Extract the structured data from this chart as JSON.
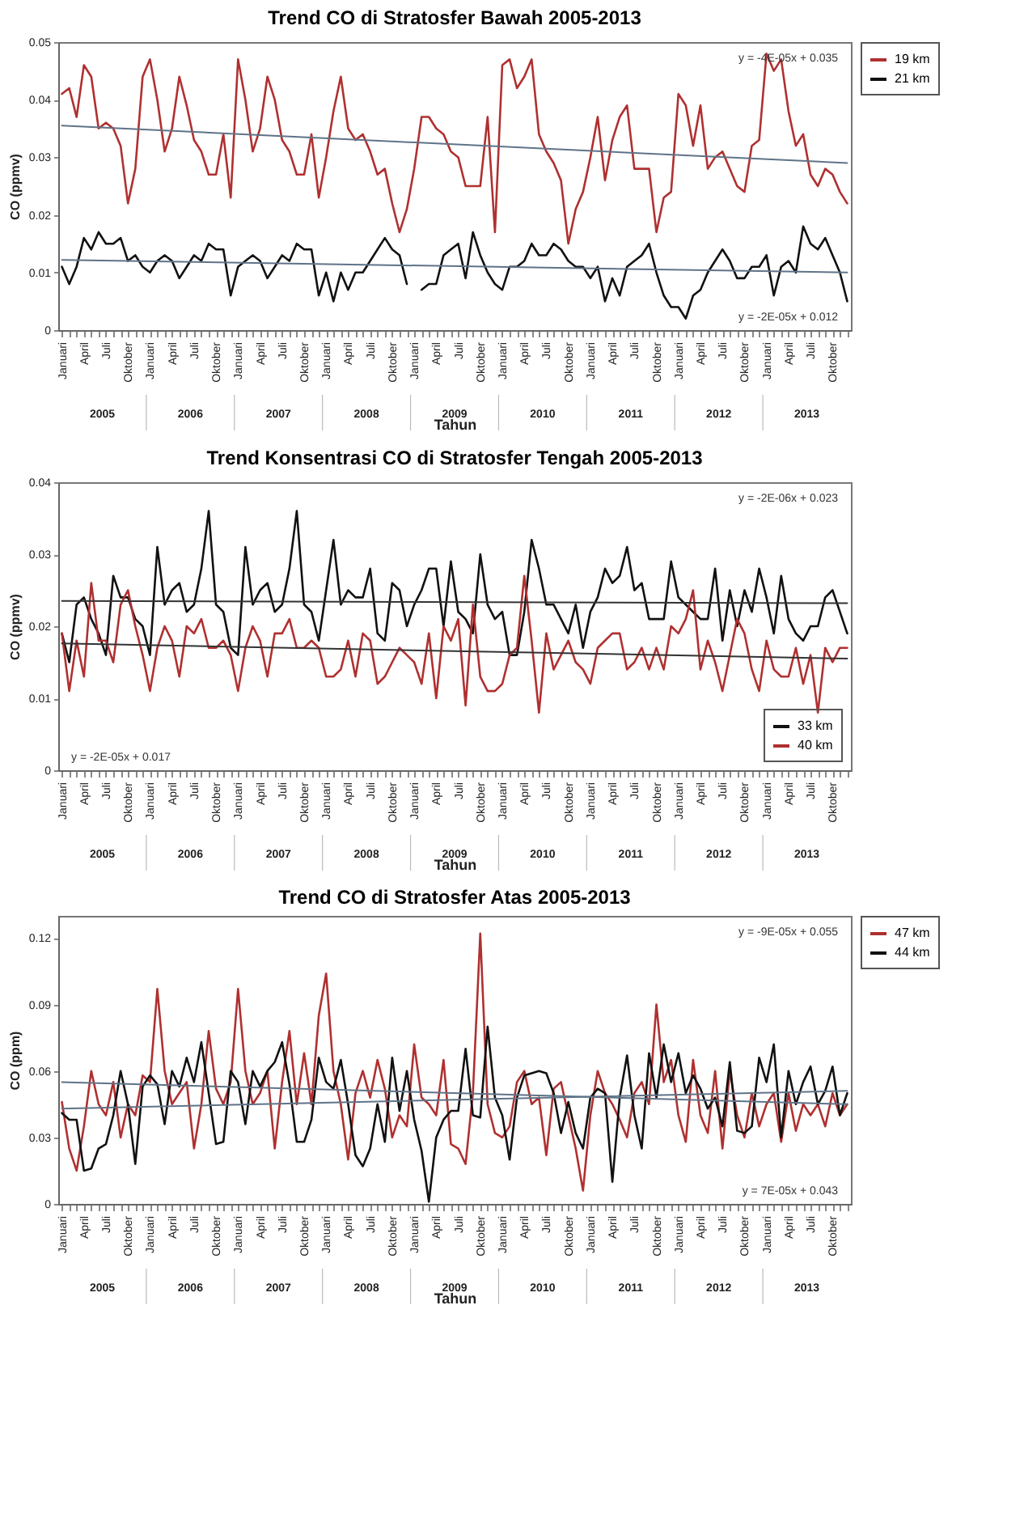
{
  "chart_data": [
    {
      "type": "line",
      "title": "Trend CO di Stratosfer Bawah 2005-2013",
      "xlabel": "Tahun",
      "ylabel": "CO (ppmv)",
      "legend": "right",
      "ylim": [
        0,
        0.05
      ],
      "yticks": [
        0,
        0.01,
        0.02,
        0.03,
        0.04,
        0.05
      ],
      "categories": [
        "Januari",
        null,
        null,
        "April",
        null,
        null,
        "Juli",
        null,
        null,
        "Oktober",
        null,
        null,
        "Januari",
        null,
        null,
        "April",
        null,
        null,
        "Juli",
        null,
        null,
        "Oktober",
        null,
        null,
        "Januari",
        null,
        null,
        "April",
        null,
        null,
        "Juli",
        null,
        null,
        "Oktober",
        null,
        null,
        "Januari",
        null,
        null,
        "April",
        null,
        null,
        "Juli",
        null,
        null,
        "Oktober",
        null,
        null,
        "Januari",
        null,
        null,
        "April",
        null,
        null,
        "Juli",
        null,
        null,
        "Oktober",
        null,
        null,
        "Januari",
        null,
        null,
        "April",
        null,
        null,
        "Juli",
        null,
        null,
        "Oktober",
        null,
        null,
        "Januari",
        null,
        null,
        "April",
        null,
        null,
        "Juli",
        null,
        null,
        "Oktober",
        null,
        null,
        "Januari",
        null,
        null,
        "April",
        null,
        null,
        "Juli",
        null,
        null,
        "Oktober",
        null,
        null,
        "Januari",
        null,
        null,
        "April",
        null,
        null,
        "Juli",
        null,
        null,
        "Oktober",
        null,
        null
      ],
      "series": [
        {
          "name": "19 km",
          "color": "#b03030",
          "values": [
            0.041,
            0.042,
            0.037,
            0.046,
            0.044,
            0.035,
            0.036,
            0.035,
            0.032,
            0.022,
            0.028,
            0.044,
            0.047,
            0.04,
            0.031,
            0.035,
            0.044,
            0.039,
            0.033,
            0.031,
            0.027,
            0.027,
            0.034,
            0.023,
            0.047,
            0.04,
            0.031,
            0.035,
            0.044,
            0.04,
            0.033,
            0.031,
            0.027,
            0.027,
            0.034,
            0.023,
            0.03,
            0.038,
            0.044,
            0.035,
            0.033,
            0.034,
            0.031,
            0.027,
            0.028,
            0.022,
            0.017,
            0.021,
            0.028,
            0.037,
            0.037,
            0.035,
            0.034,
            0.031,
            0.03,
            0.025,
            0.025,
            0.025,
            0.037,
            0.017,
            0.046,
            0.047,
            0.042,
            0.044,
            0.047,
            0.034,
            0.031,
            0.029,
            0.026,
            0.015,
            0.021,
            0.024,
            0.03,
            0.037,
            0.026,
            0.033,
            0.037,
            0.039,
            0.028,
            0.028,
            0.028,
            0.017,
            0.023,
            0.024,
            0.041,
            0.039,
            0.032,
            0.039,
            0.028,
            0.03,
            0.031,
            0.028,
            0.025,
            0.024,
            0.032,
            0.033,
            0.048,
            0.045,
            0.047,
            0.038,
            0.032,
            0.034,
            0.027,
            0.025,
            0.028,
            0.027,
            0.024,
            0.022
          ]
        },
        {
          "name": "21 km",
          "color": "#111111",
          "values": [
            0.011,
            0.008,
            0.011,
            0.016,
            0.014,
            0.017,
            0.015,
            0.015,
            0.016,
            0.012,
            0.013,
            0.011,
            0.01,
            0.012,
            0.013,
            0.012,
            0.009,
            0.011,
            0.013,
            0.012,
            0.015,
            0.014,
            0.014,
            0.006,
            0.011,
            0.012,
            0.013,
            0.012,
            0.009,
            0.011,
            0.013,
            0.012,
            0.015,
            0.014,
            0.014,
            0.006,
            0.01,
            0.005,
            0.01,
            0.007,
            0.01,
            0.01,
            0.012,
            0.014,
            0.016,
            0.014,
            0.013,
            0.008,
            null,
            0.007,
            0.008,
            0.008,
            0.013,
            0.014,
            0.015,
            0.009,
            0.017,
            0.013,
            0.01,
            0.008,
            0.007,
            0.011,
            0.011,
            0.012,
            0.015,
            0.013,
            0.013,
            0.015,
            0.014,
            0.012,
            0.011,
            0.011,
            0.009,
            0.011,
            0.005,
            0.009,
            0.006,
            0.011,
            0.012,
            0.013,
            0.015,
            0.01,
            0.006,
            0.004,
            0.004,
            0.002,
            0.006,
            0.007,
            0.01,
            0.012,
            0.014,
            0.012,
            0.009,
            0.009,
            0.011,
            0.011,
            0.013,
            0.006,
            0.011,
            0.012,
            0.01,
            0.018,
            0.015,
            0.014,
            0.016,
            0.013,
            0.01,
            0.005
          ]
        },
        {
          "type": "line",
          "color": "#5f7387",
          "values": [
            0.0355,
            null,
            null,
            null,
            null,
            null,
            null,
            null,
            null,
            null,
            null,
            null,
            null,
            null,
            null,
            null,
            null,
            null,
            null,
            null,
            null,
            null,
            null,
            null,
            null,
            null,
            null,
            null,
            null,
            null,
            null,
            null,
            null,
            null,
            null,
            null,
            null,
            null,
            null,
            null,
            null,
            null,
            null,
            null,
            null,
            null,
            null,
            null,
            null,
            null,
            null,
            null,
            null,
            null,
            null,
            null,
            null,
            null,
            null,
            null,
            null,
            null,
            null,
            null,
            null,
            null,
            null,
            null,
            null,
            null,
            null,
            null,
            null,
            null,
            null,
            null,
            null,
            null,
            null,
            null,
            null,
            null,
            null,
            null,
            null,
            null,
            null,
            null,
            null,
            null,
            null,
            null,
            null,
            null,
            null,
            null,
            null,
            null,
            null,
            null,
            null,
            null,
            null,
            null,
            null,
            null,
            null,
            0.029
          ]
        },
        {
          "type": "line",
          "color": "#5f7387",
          "values": [
            0.0122,
            null,
            null,
            null,
            null,
            null,
            null,
            null,
            null,
            null,
            null,
            null,
            null,
            null,
            null,
            null,
            null,
            null,
            null,
            null,
            null,
            null,
            null,
            null,
            null,
            null,
            null,
            null,
            null,
            null,
            null,
            null,
            null,
            null,
            null,
            null,
            null,
            null,
            null,
            null,
            null,
            null,
            null,
            null,
            null,
            null,
            null,
            null,
            null,
            null,
            null,
            null,
            null,
            null,
            null,
            null,
            null,
            null,
            null,
            null,
            null,
            null,
            null,
            null,
            null,
            null,
            null,
            null,
            null,
            null,
            null,
            null,
            null,
            null,
            null,
            null,
            null,
            null,
            null,
            null,
            null,
            null,
            null,
            null,
            null,
            null,
            null,
            null,
            null,
            null,
            null,
            null,
            null,
            null,
            null,
            null,
            null,
            null,
            null,
            null,
            null,
            null,
            null,
            null,
            null,
            null,
            null,
            0.01
          ]
        }
      ],
      "annotations": [
        "y = -4E-05x + 0.035",
        "y = -2E-05x + 0.012",
        "2005",
        "2006",
        "2007",
        "2008",
        "2009",
        "2010",
        "2011",
        "2012",
        "2013"
      ]
    },
    {
      "type": "line",
      "title": "Trend Konsentrasi CO di Stratosfer Tengah 2005-2013",
      "xlabel": "Tahun",
      "ylabel": "CO (ppmv)",
      "legend": "bottom right",
      "ylim": [
        0,
        0.04
      ],
      "yticks": [
        0,
        0.01,
        0.02,
        0.03,
        0.04
      ],
      "categories": [
        "Januari",
        null,
        null,
        "April",
        null,
        null,
        "Juli",
        null,
        null,
        "Oktober",
        null,
        null,
        "Januari",
        null,
        null,
        "April",
        null,
        null,
        "Juli",
        null,
        null,
        "Oktober",
        null,
        null,
        "Januari",
        null,
        null,
        "April",
        null,
        null,
        "Juli",
        null,
        null,
        "Oktober",
        null,
        null,
        "Januari",
        null,
        null,
        "April",
        null,
        null,
        "Juli",
        null,
        null,
        "Oktober",
        null,
        null,
        "Januari",
        null,
        null,
        "April",
        null,
        null,
        "Juli",
        null,
        null,
        "Oktober",
        null,
        null,
        "Januari",
        null,
        null,
        "April",
        null,
        null,
        "Juli",
        null,
        null,
        "Oktober",
        null,
        null,
        "Januari",
        null,
        null,
        "April",
        null,
        null,
        "Juli",
        null,
        null,
        "Oktober",
        null,
        null,
        "Januari",
        null,
        null,
        "April",
        null,
        null,
        "Juli",
        null,
        null,
        "Oktober",
        null,
        null,
        "Januari",
        null,
        null,
        "April",
        null,
        null,
        "Juli",
        null,
        null,
        "Oktober",
        null,
        null
      ],
      "series": [
        {
          "name": "33 km",
          "color": "#111111",
          "values": [
            0.019,
            0.015,
            0.023,
            0.024,
            0.021,
            0.019,
            0.016,
            0.027,
            0.024,
            0.024,
            0.021,
            0.02,
            0.016,
            0.031,
            0.023,
            0.025,
            0.026,
            0.022,
            0.023,
            0.028,
            0.036,
            0.023,
            0.022,
            0.017,
            0.016,
            0.031,
            0.023,
            0.025,
            0.026,
            0.022,
            0.023,
            0.028,
            0.036,
            0.023,
            0.022,
            0.018,
            0.025,
            0.032,
            0.023,
            0.025,
            0.024,
            0.024,
            0.028,
            0.019,
            0.018,
            0.026,
            0.025,
            0.02,
            0.023,
            0.025,
            0.028,
            0.028,
            0.02,
            0.029,
            0.022,
            0.021,
            0.019,
            0.03,
            0.023,
            0.021,
            0.022,
            0.016,
            0.016,
            0.022,
            0.032,
            0.028,
            0.023,
            0.023,
            0.021,
            0.019,
            0.023,
            0.017,
            0.022,
            0.024,
            0.028,
            0.026,
            0.027,
            0.031,
            0.025,
            0.026,
            0.021,
            0.021,
            0.021,
            0.029,
            0.024,
            0.023,
            0.022,
            0.021,
            0.021,
            0.028,
            0.018,
            0.025,
            0.02,
            0.025,
            0.022,
            0.028,
            0.024,
            0.019,
            0.027,
            0.021,
            0.019,
            0.018,
            0.02,
            0.02,
            0.024,
            0.025,
            0.022,
            0.019
          ]
        },
        {
          "name": "40 km",
          "color": "#b03030",
          "values": [
            0.019,
            0.011,
            0.018,
            0.013,
            0.026,
            0.018,
            0.018,
            0.015,
            0.023,
            0.025,
            0.02,
            0.016,
            0.011,
            0.017,
            0.02,
            0.018,
            0.013,
            0.02,
            0.019,
            0.021,
            0.017,
            0.017,
            0.018,
            0.016,
            0.011,
            0.017,
            0.02,
            0.018,
            0.013,
            0.019,
            0.019,
            0.021,
            0.017,
            0.017,
            0.018,
            0.017,
            0.013,
            0.013,
            0.014,
            0.018,
            0.013,
            0.019,
            0.018,
            0.012,
            0.013,
            0.015,
            0.017,
            0.016,
            0.015,
            0.012,
            0.019,
            0.01,
            0.02,
            0.018,
            0.021,
            0.009,
            0.023,
            0.013,
            0.011,
            0.011,
            0.012,
            0.016,
            0.017,
            0.027,
            0.018,
            0.008,
            0.019,
            0.014,
            0.016,
            0.018,
            0.015,
            0.014,
            0.012,
            0.017,
            0.018,
            0.019,
            0.019,
            0.014,
            0.015,
            0.017,
            0.014,
            0.017,
            0.014,
            0.02,
            0.019,
            0.021,
            0.025,
            0.014,
            0.018,
            0.015,
            0.011,
            0.016,
            0.021,
            0.019,
            0.014,
            0.011,
            0.018,
            0.014,
            0.013,
            0.013,
            0.017,
            0.012,
            0.016,
            0.008,
            0.017,
            0.015,
            0.017,
            0.017
          ]
        },
        {
          "type": "line",
          "color": "#333333",
          "values": [
            0.0235,
            null,
            null,
            null,
            null,
            null,
            null,
            null,
            null,
            null,
            null,
            null,
            null,
            null,
            null,
            null,
            null,
            null,
            null,
            null,
            null,
            null,
            null,
            null,
            null,
            null,
            null,
            null,
            null,
            null,
            null,
            null,
            null,
            null,
            null,
            null,
            null,
            null,
            null,
            null,
            null,
            null,
            null,
            null,
            null,
            null,
            null,
            null,
            null,
            null,
            null,
            null,
            null,
            null,
            null,
            null,
            null,
            null,
            null,
            null,
            null,
            null,
            null,
            null,
            null,
            null,
            null,
            null,
            null,
            null,
            null,
            null,
            null,
            null,
            null,
            null,
            null,
            null,
            null,
            null,
            null,
            null,
            null,
            null,
            null,
            null,
            null,
            null,
            null,
            null,
            null,
            null,
            null,
            null,
            null,
            null,
            null,
            null,
            null,
            null,
            null,
            null,
            null,
            null,
            null,
            null,
            null,
            0.0232
          ]
        },
        {
          "type": "line",
          "color": "#333333",
          "values": [
            0.0176,
            null,
            null,
            null,
            null,
            null,
            null,
            null,
            null,
            null,
            null,
            null,
            null,
            null,
            null,
            null,
            null,
            null,
            null,
            null,
            null,
            null,
            null,
            null,
            null,
            null,
            null,
            null,
            null,
            null,
            null,
            null,
            null,
            null,
            null,
            null,
            null,
            null,
            null,
            null,
            null,
            null,
            null,
            null,
            null,
            null,
            null,
            null,
            null,
            null,
            null,
            null,
            null,
            null,
            null,
            null,
            null,
            null,
            null,
            null,
            null,
            null,
            null,
            null,
            null,
            null,
            null,
            null,
            null,
            null,
            null,
            null,
            null,
            null,
            null,
            null,
            null,
            null,
            null,
            null,
            null,
            null,
            null,
            null,
            null,
            null,
            null,
            null,
            null,
            null,
            null,
            null,
            null,
            null,
            null,
            null,
            null,
            null,
            null,
            null,
            null,
            null,
            null,
            null,
            null,
            null,
            null,
            0.0155
          ]
        }
      ],
      "annotations": [
        "y = -2E-06x + 0.023",
        "y = -2E-05x + 0.017",
        "2005",
        "2006",
        "2007",
        "2008",
        "2009",
        "2010",
        "2011",
        "2012",
        "2013"
      ]
    },
    {
      "type": "line",
      "title": "Trend CO di Stratosfer Atas 2005-2013",
      "xlabel": "Tahun",
      "ylabel": "CO (ppm)",
      "legend": "right",
      "ylim": [
        0,
        0.13
      ],
      "yticks": [
        0,
        0.03,
        0.06,
        0.09,
        0.12
      ],
      "categories": [
        "Januari",
        null,
        null,
        "April",
        null,
        null,
        "Juli",
        null,
        null,
        "Oktober",
        null,
        null,
        "Januari",
        null,
        null,
        "April",
        null,
        null,
        "Juli",
        null,
        null,
        "Oktober",
        null,
        null,
        "Januari",
        null,
        null,
        "April",
        null,
        null,
        "Juli",
        null,
        null,
        "Oktober",
        null,
        null,
        "Januari",
        null,
        null,
        "April",
        null,
        null,
        "Juli",
        null,
        null,
        "Oktober",
        null,
        null,
        "Januari",
        null,
        null,
        "April",
        null,
        null,
        "Juli",
        null,
        null,
        "Oktober",
        null,
        null,
        "Januari",
        null,
        null,
        "April",
        null,
        null,
        "Juli",
        null,
        null,
        "Oktober",
        null,
        null,
        "Januari",
        null,
        null,
        "April",
        null,
        null,
        "Juli",
        null,
        null,
        "Oktober",
        null,
        null,
        "Januari",
        null,
        null,
        "April",
        null,
        null,
        "Juli",
        null,
        null,
        "Oktober",
        null,
        null,
        "Januari",
        null,
        null,
        "April",
        null,
        null,
        "Juli",
        null,
        null,
        "Oktober",
        null,
        null
      ],
      "series": [
        {
          "name": "47 km",
          "color": "#b03030",
          "values": [
            0.046,
            0.025,
            0.015,
            0.035,
            0.06,
            0.045,
            0.04,
            0.055,
            0.03,
            0.045,
            0.04,
            0.058,
            0.055,
            0.097,
            0.06,
            0.045,
            0.05,
            0.055,
            0.025,
            0.045,
            0.078,
            0.052,
            0.045,
            0.055,
            0.097,
            0.06,
            0.045,
            0.05,
            0.06,
            0.025,
            0.055,
            0.078,
            0.045,
            0.068,
            0.045,
            0.085,
            0.104,
            0.06,
            0.045,
            0.02,
            0.05,
            0.06,
            0.048,
            0.065,
            0.052,
            0.03,
            0.04,
            0.035,
            0.072,
            0.048,
            0.045,
            0.04,
            0.065,
            0.027,
            0.025,
            0.018,
            0.05,
            0.122,
            0.045,
            0.032,
            0.03,
            0.035,
            0.055,
            0.06,
            0.045,
            0.048,
            0.022,
            0.052,
            0.055,
            0.04,
            0.025,
            0.006,
            0.04,
            0.06,
            0.05,
            0.045,
            0.038,
            0.03,
            0.05,
            0.055,
            0.045,
            0.09,
            0.055,
            0.065,
            0.04,
            0.028,
            0.065,
            0.04,
            0.032,
            0.06,
            0.025,
            0.06,
            0.04,
            0.03,
            0.05,
            0.035,
            0.045,
            0.05,
            0.028,
            0.05,
            0.033,
            0.045,
            0.04,
            0.045,
            0.035,
            0.05,
            0.04,
            0.045
          ]
        },
        {
          "name": "44 km",
          "color": "#111111",
          "values": [
            0.041,
            0.038,
            0.038,
            0.015,
            0.016,
            0.025,
            0.027,
            0.04,
            0.06,
            0.045,
            0.018,
            0.053,
            0.058,
            0.054,
            0.036,
            0.06,
            0.053,
            0.066,
            0.055,
            0.073,
            0.05,
            0.027,
            0.028,
            0.06,
            0.055,
            0.036,
            0.06,
            0.053,
            0.06,
            0.064,
            0.073,
            0.054,
            0.028,
            0.028,
            0.038,
            0.066,
            0.055,
            0.052,
            0.065,
            0.045,
            0.022,
            0.017,
            0.025,
            0.045,
            0.028,
            0.066,
            0.042,
            0.06,
            0.038,
            0.024,
            0.001,
            0.03,
            0.038,
            0.042,
            0.042,
            0.07,
            0.04,
            0.039,
            0.08,
            0.048,
            0.04,
            0.02,
            0.048,
            0.058,
            0.059,
            0.06,
            0.059,
            0.05,
            0.032,
            0.046,
            0.032,
            0.025,
            0.048,
            0.052,
            0.05,
            0.01,
            0.048,
            0.067,
            0.04,
            0.025,
            0.068,
            0.048,
            0.072,
            0.055,
            0.068,
            0.05,
            0.058,
            0.052,
            0.043,
            0.048,
            0.035,
            0.064,
            0.033,
            0.032,
            0.035,
            0.066,
            0.055,
            0.072,
            0.03,
            0.06,
            0.045,
            0.055,
            0.062,
            0.045,
            0.051,
            0.062,
            0.04,
            0.05
          ]
        },
        {
          "type": "line",
          "color": "#5f7387",
          "values": [
            0.055,
            null,
            null,
            null,
            null,
            null,
            null,
            null,
            null,
            null,
            null,
            null,
            null,
            null,
            null,
            null,
            null,
            null,
            null,
            null,
            null,
            null,
            null,
            null,
            null,
            null,
            null,
            null,
            null,
            null,
            null,
            null,
            null,
            null,
            null,
            null,
            null,
            null,
            null,
            null,
            null,
            null,
            null,
            null,
            null,
            null,
            null,
            null,
            null,
            null,
            null,
            null,
            null,
            null,
            null,
            null,
            null,
            null,
            null,
            null,
            null,
            null,
            null,
            null,
            null,
            null,
            null,
            null,
            null,
            null,
            null,
            null,
            null,
            null,
            null,
            null,
            null,
            null,
            null,
            null,
            null,
            null,
            null,
            null,
            null,
            null,
            null,
            null,
            null,
            null,
            null,
            null,
            null,
            null,
            null,
            null,
            null,
            null,
            null,
            null,
            null,
            null,
            null,
            null,
            null,
            null,
            null,
            0.045
          ]
        },
        {
          "type": "line",
          "color": "#5f7387",
          "values": [
            0.043,
            null,
            null,
            null,
            null,
            null,
            null,
            null,
            null,
            null,
            null,
            null,
            null,
            null,
            null,
            null,
            null,
            null,
            null,
            null,
            null,
            null,
            null,
            null,
            null,
            null,
            null,
            null,
            null,
            null,
            null,
            null,
            null,
            null,
            null,
            null,
            null,
            null,
            null,
            null,
            null,
            null,
            null,
            null,
            null,
            null,
            null,
            null,
            null,
            null,
            null,
            null,
            null,
            null,
            null,
            null,
            null,
            null,
            null,
            null,
            null,
            null,
            null,
            null,
            null,
            null,
            null,
            null,
            null,
            null,
            null,
            null,
            null,
            null,
            null,
            null,
            null,
            null,
            null,
            null,
            null,
            null,
            null,
            null,
            null,
            null,
            null,
            null,
            null,
            null,
            null,
            null,
            null,
            null,
            null,
            null,
            null,
            null,
            null,
            null,
            null,
            null,
            null,
            null,
            null,
            null,
            null,
            0.051
          ]
        }
      ],
      "annotations": [
        "y = -9E-05x + 0.055",
        "y = 7E-05x + 0.043",
        "2005",
        "2006",
        "2007",
        "2008",
        "2009",
        "2010",
        "2011",
        "2012",
        "2013"
      ]
    }
  ]
}
